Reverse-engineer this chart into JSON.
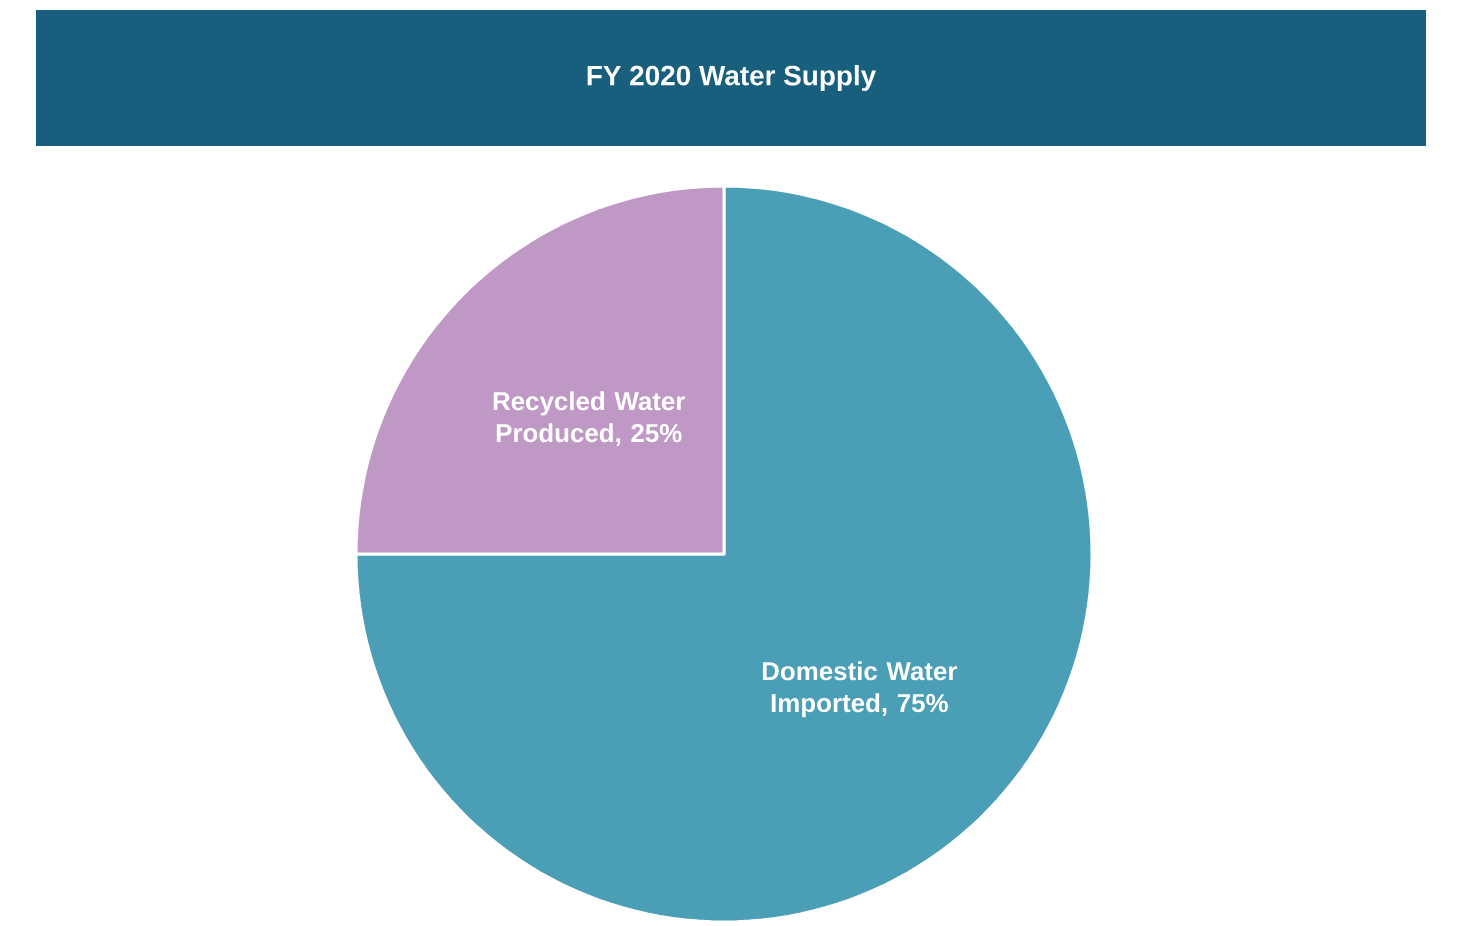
{
  "chart_data": {
    "type": "pie",
    "title": "FY 2020 Water Supply",
    "categories": [
      "Domestic Water Imported, 75%",
      "Recycled Water Produced, 25%"
    ],
    "values": [
      75,
      25
    ],
    "colors": [
      "#4a9fb6",
      "#bf98c5"
    ]
  }
}
